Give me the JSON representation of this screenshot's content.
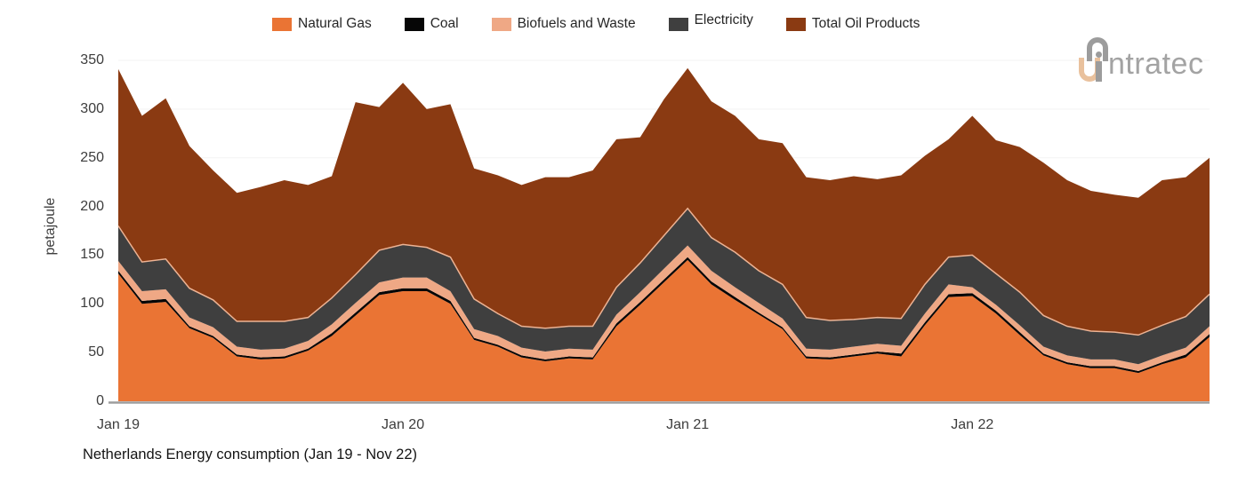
{
  "caption": "Netherlands Energy consumption (Jan 19 - Nov 22)",
  "logo": {
    "brand": "intratec",
    "gray": "#9c9c9c",
    "peach": "#e9c19d"
  },
  "legend": [
    {
      "label": "Natural Gas",
      "color": "#ea7434"
    },
    {
      "label": "Coal",
      "color": "#060606"
    },
    {
      "label": "Biofuels and Waste",
      "color": "#efa885"
    },
    {
      "label": "Electricity",
      "color": "#3f3f3f"
    },
    {
      "label": "Total Oil Products",
      "color": "#8a3a12"
    }
  ],
  "y_axis": {
    "title": "petajoule",
    "ticks": [
      0,
      50,
      100,
      150,
      200,
      250,
      300,
      350
    ]
  },
  "x_axis": {
    "ticks": [
      {
        "index": 0,
        "label": "Jan 19"
      },
      {
        "index": 12,
        "label": "Jan 20"
      },
      {
        "index": 24,
        "label": "Jan 21"
      },
      {
        "index": 36,
        "label": "Jan 22"
      }
    ]
  },
  "chart_data": {
    "type": "area",
    "stacked": true,
    "title": "Netherlands Energy consumption (Jan 19 - Nov 22)",
    "xlabel": "",
    "ylabel": "petajoule",
    "ylim": [
      0,
      350
    ],
    "yticks": [
      0,
      50,
      100,
      150,
      200,
      250,
      300,
      350
    ],
    "grid": "faint-horizontal",
    "legend_position": "top-center",
    "unit": "petajoule",
    "x": [
      "Jan 19",
      "Feb 19",
      "Mar 19",
      "Apr 19",
      "May 19",
      "Jun 19",
      "Jul 19",
      "Aug 19",
      "Sep 19",
      "Oct 19",
      "Nov 19",
      "Dec 19",
      "Jan 20",
      "Feb 20",
      "Mar 20",
      "Apr 20",
      "May 20",
      "Jun 20",
      "Jul 20",
      "Aug 20",
      "Sep 20",
      "Oct 20",
      "Nov 20",
      "Dec 20",
      "Jan 21",
      "Feb 21",
      "Mar 21",
      "Apr 21",
      "May 21",
      "Jun 21",
      "Jul 21",
      "Aug 21",
      "Sep 21",
      "Oct 21",
      "Nov 21",
      "Dec 21",
      "Jan 22",
      "Feb 22",
      "Mar 22",
      "Apr 22",
      "May 22",
      "Jun 22",
      "Jul 22",
      "Aug 22",
      "Sep 22",
      "Oct 22",
      "Nov 22"
    ],
    "series": [
      {
        "name": "Natural Gas",
        "color": "#ea7434",
        "values": [
          131,
          100,
          102,
          75,
          65,
          46,
          43,
          44,
          52,
          67,
          88,
          109,
          113,
          113,
          100,
          63,
          56,
          45,
          41,
          44,
          43,
          77,
          99,
          122,
          145,
          120,
          104,
          89,
          74,
          44,
          43,
          46,
          49,
          46,
          78,
          107,
          108,
          90,
          68,
          47,
          38,
          34,
          34,
          29,
          38,
          45,
          66
        ]
      },
      {
        "name": "Coal",
        "color": "#060606",
        "values": [
          3,
          3,
          3,
          2,
          2,
          2,
          2,
          2,
          2,
          3,
          3,
          3,
          3,
          3,
          3,
          2,
          2,
          2,
          2,
          2,
          2,
          3,
          3,
          3,
          3,
          3,
          3,
          2,
          2,
          2,
          2,
          2,
          2,
          3,
          3,
          3,
          3,
          3,
          3,
          2,
          2,
          2,
          2,
          2,
          2,
          3,
          3
        ]
      },
      {
        "name": "Biofuels and Waste",
        "color": "#efa885",
        "values": [
          10,
          10,
          10,
          9,
          9,
          8,
          8,
          8,
          8,
          9,
          10,
          10,
          11,
          11,
          10,
          9,
          9,
          8,
          8,
          8,
          8,
          9,
          10,
          11,
          12,
          11,
          10,
          10,
          9,
          8,
          8,
          8,
          8,
          8,
          9,
          10,
          6,
          6,
          7,
          7,
          7,
          7,
          7,
          7,
          7,
          7,
          8
        ]
      },
      {
        "name": "Electricity",
        "color": "#3f3f3f",
        "values": [
          36,
          30,
          31,
          30,
          28,
          26,
          29,
          28,
          24,
          27,
          29,
          33,
          34,
          31,
          35,
          31,
          23,
          22,
          24,
          23,
          24,
          28,
          30,
          34,
          38,
          34,
          36,
          33,
          35,
          32,
          30,
          28,
          27,
          28,
          30,
          28,
          33,
          32,
          34,
          32,
          30,
          29,
          28,
          30,
          31,
          32,
          33
        ]
      },
      {
        "name": "Total Oil Products",
        "color": "#8a3a12",
        "values": [
          161,
          150,
          165,
          146,
          133,
          132,
          138,
          145,
          136,
          125,
          177,
          147,
          166,
          142,
          157,
          134,
          142,
          145,
          155,
          153,
          160,
          152,
          129,
          140,
          144,
          140,
          140,
          135,
          145,
          144,
          144,
          147,
          142,
          147,
          132,
          121,
          143,
          137,
          149,
          157,
          150,
          144,
          141,
          141,
          149,
          143,
          140
        ]
      }
    ],
    "style": {
      "electricity_top_stroke": "#edb394",
      "baseline_color": "#9d9d9d",
      "gridline_color": "#f3f3f3"
    }
  }
}
